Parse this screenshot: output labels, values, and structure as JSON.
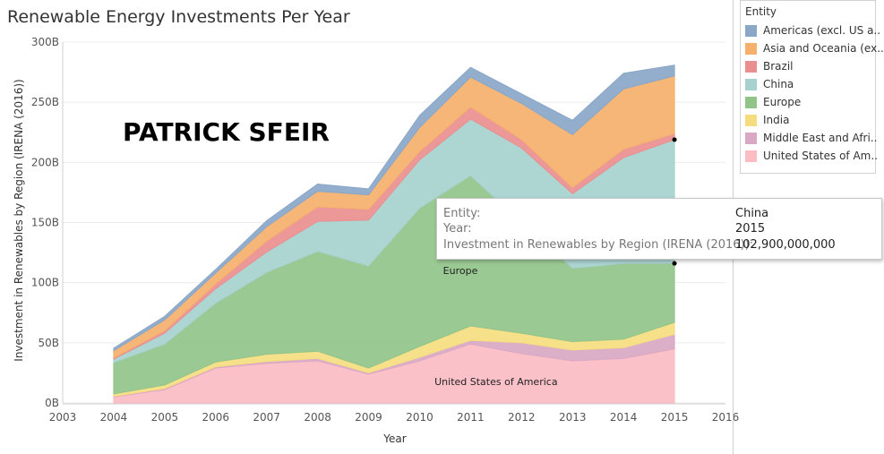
{
  "page": {
    "title": "Renewable Energy Investments Per Year"
  },
  "watermark": "PATRICK SFEIR",
  "legend": {
    "title": "Entity",
    "items": [
      {
        "label": "Americas (excl. US a..",
        "color": "#8aa7c8"
      },
      {
        "label": "Asia and Oceania (ex..",
        "color": "#f5b06c"
      },
      {
        "label": "Brazil",
        "color": "#ea8f8f"
      },
      {
        "label": "China",
        "color": "#a6d1ce"
      },
      {
        "label": "Europe",
        "color": "#92c48a"
      },
      {
        "label": "India",
        "color": "#f5dd7f"
      },
      {
        "label": "Middle East and Afri..",
        "color": "#d9a8c4"
      },
      {
        "label": "United States of Am..",
        "color": "#fbbcc3"
      }
    ]
  },
  "tooltip": {
    "rows": [
      {
        "key": "Entity:",
        "value": "China"
      },
      {
        "key": "Year:",
        "value": "2015"
      },
      {
        "key": "Investment in Renewables by Region (IRENA (2016)):",
        "value": "102,900,000,000"
      }
    ]
  },
  "chart_data": {
    "type": "area",
    "stacked": true,
    "xlabel": "Year",
    "ylabel": "Investment in Renewables by Region (IRENA (2016))",
    "x": [
      2004,
      2005,
      2006,
      2007,
      2008,
      2009,
      2010,
      2011,
      2012,
      2013,
      2014,
      2015
    ],
    "x_ticks": [
      "2003",
      "2004",
      "2005",
      "2006",
      "2007",
      "2008",
      "2009",
      "2010",
      "2011",
      "2012",
      "2013",
      "2014",
      "2015",
      "2016"
    ],
    "xlim": [
      2003,
      2016
    ],
    "ylim": [
      0,
      300
    ],
    "y_ticks": [
      "0B",
      "50B",
      "100B",
      "150B",
      "200B",
      "250B",
      "300B"
    ],
    "series": [
      {
        "name": "United States of America",
        "color": "#fbbcc3",
        "values": [
          5,
          11,
          29,
          33,
          35,
          24,
          35,
          49,
          41,
          35,
          37,
          45
        ]
      },
      {
        "name": "Middle East and Africa",
        "color": "#d9a8c4",
        "values": [
          0.5,
          1,
          1,
          1.5,
          2,
          1,
          3,
          3,
          9,
          9,
          9,
          12
        ]
      },
      {
        "name": "India",
        "color": "#f5dd7f",
        "values": [
          2,
          3,
          4,
          6,
          6,
          4,
          9,
          12,
          8,
          7,
          7,
          10
        ]
      },
      {
        "name": "Europe",
        "color": "#92c48a",
        "values": [
          26,
          34,
          49,
          68,
          83,
          85,
          115,
          125,
          92,
          61,
          63,
          49
        ]
      },
      {
        "name": "China",
        "color": "#a6d1ce",
        "values": [
          3,
          9,
          12,
          17,
          25,
          38,
          40,
          47,
          62,
          62,
          88,
          102.9
        ]
      },
      {
        "name": "Brazil",
        "color": "#ea8f8f",
        "values": [
          1,
          2,
          4,
          9,
          12,
          9,
          7,
          10,
          7,
          5,
          7,
          5
        ]
      },
      {
        "name": "Asia and Oceania (excl. China and India)",
        "color": "#f5b06c",
        "values": [
          6,
          9,
          9,
          12,
          13,
          12,
          20,
          25,
          30,
          44,
          50,
          48
        ]
      },
      {
        "name": "Americas (excl. US and Brazil)",
        "color": "#8aa7c8",
        "values": [
          2,
          3,
          3,
          5,
          6,
          5,
          10,
          8,
          8,
          12,
          13,
          9
        ]
      }
    ],
    "annotations": [
      {
        "text": "Europe",
        "x": 2010.8,
        "y": 110
      },
      {
        "text": "United States of America",
        "x": 2011.5,
        "y": 18
      }
    ],
    "highlight": {
      "series": "China",
      "x": 2015,
      "value": 102.9
    }
  }
}
